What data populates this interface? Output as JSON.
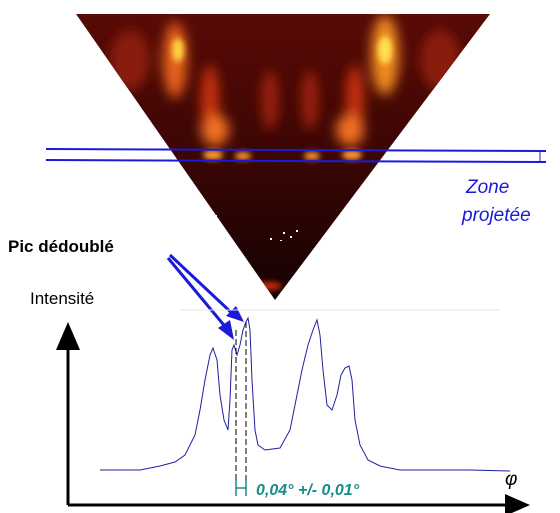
{
  "labels": {
    "split_peak": "Pic dédoublé",
    "intensity": "Intensité",
    "zone_line1": "Zone",
    "zone_line2": "projetée",
    "phi": "φ",
    "measure": "0,04° +/- 0,01°"
  }
}
